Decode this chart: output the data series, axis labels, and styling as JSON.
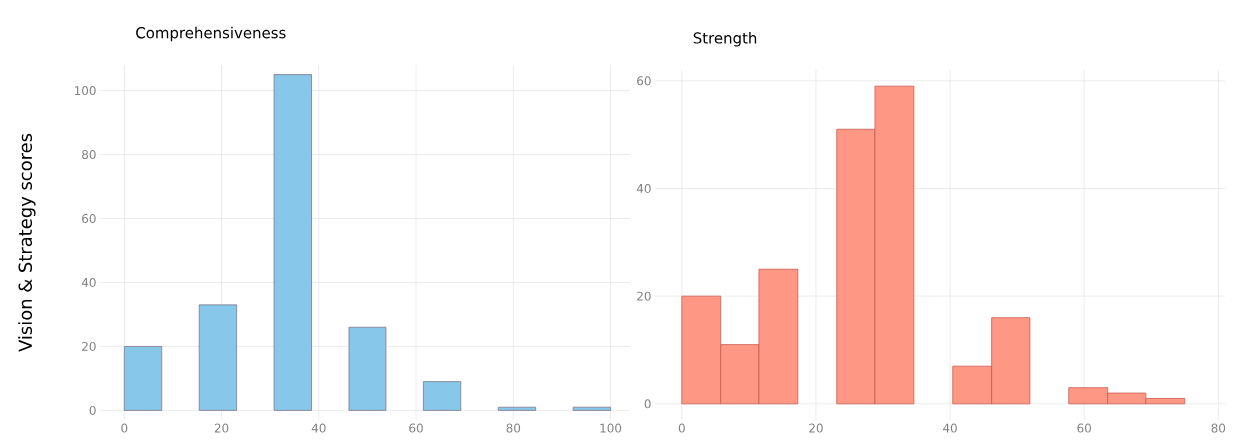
{
  "chart_data": [
    {
      "type": "histogram",
      "title": "Comprehensiveness",
      "ylabel": "Vision & Strategy scores",
      "color": "#86c7ea",
      "bins": [
        0,
        7.7,
        15.4,
        23.1,
        30.8,
        38.5,
        46.2,
        53.8,
        61.5,
        69.2,
        76.9,
        84.6,
        92.3,
        100
      ],
      "values": [
        20,
        0,
        33,
        0,
        105,
        0,
        26,
        0,
        9,
        0,
        1,
        0,
        1
      ],
      "xlim": [
        -5,
        104
      ],
      "ylim": [
        -3,
        108
      ],
      "xticks": [
        0,
        20,
        40,
        60,
        80,
        100
      ],
      "yticks": [
        0,
        20,
        40,
        60,
        80,
        100
      ],
      "grid": true
    },
    {
      "type": "histogram",
      "title": "Strength",
      "color": "#fe9885",
      "bins": [
        0,
        5.8,
        11.5,
        17.3,
        23.1,
        28.8,
        34.6,
        40.4,
        46.2,
        51.9,
        57.7,
        63.5,
        69.2,
        75
      ],
      "values": [
        20,
        11,
        25,
        0,
        51,
        59,
        0,
        7,
        16,
        0,
        3,
        2,
        1
      ],
      "xlim": [
        -4,
        81
      ],
      "ylim": [
        -3,
        62
      ],
      "xticks": [
        0,
        20,
        40,
        60,
        80
      ],
      "yticks": [
        0,
        20,
        40,
        60
      ],
      "grid": true
    }
  ]
}
